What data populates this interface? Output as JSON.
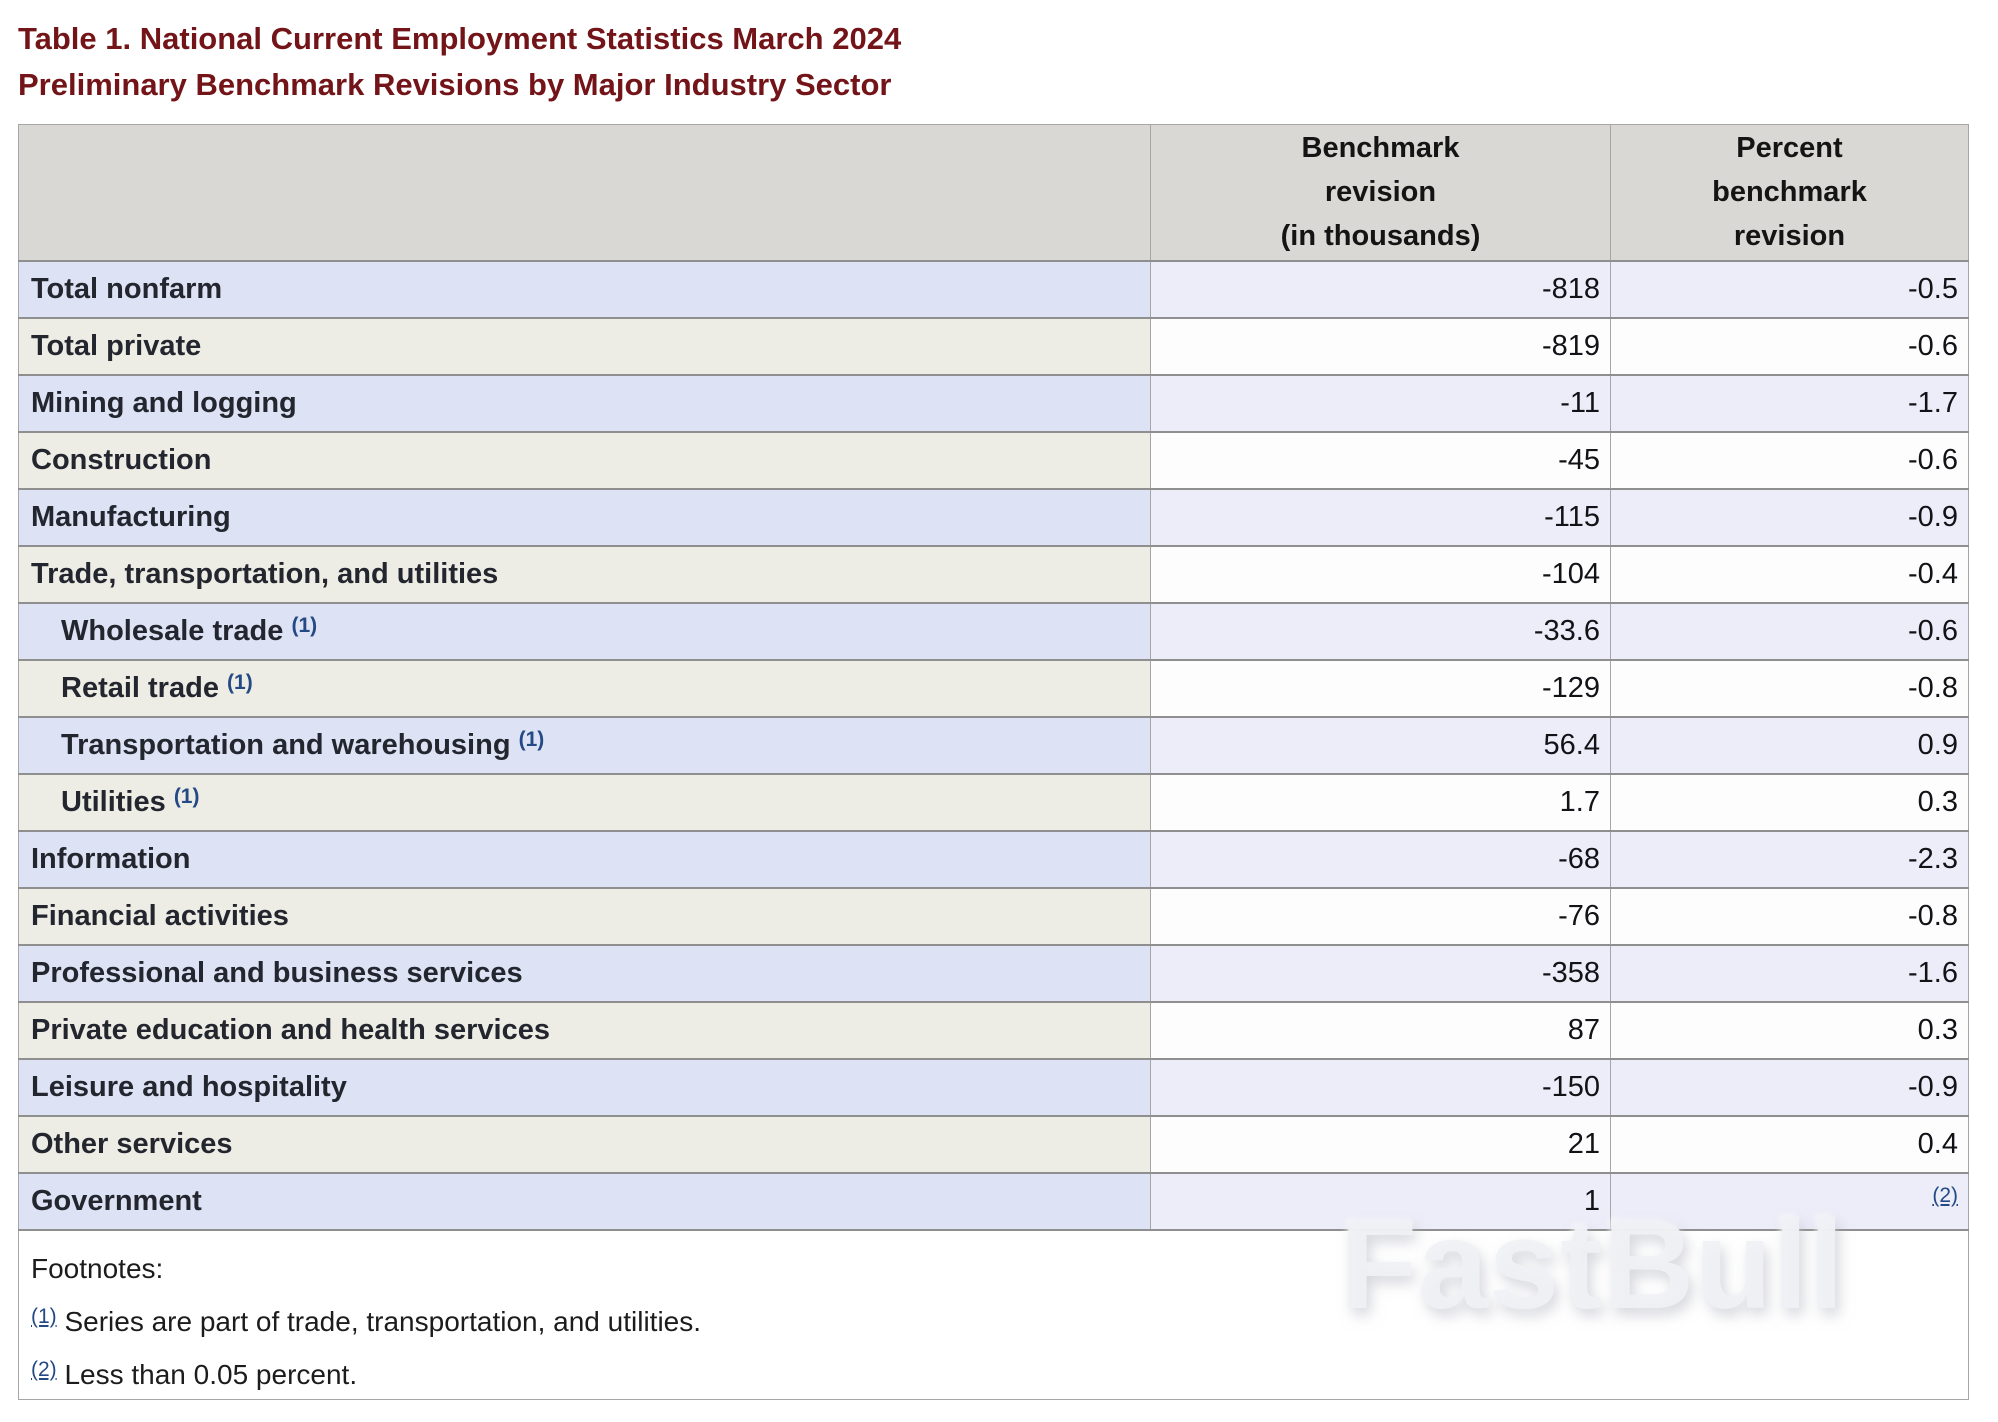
{
  "title": {
    "line1": "Table 1. National Current Employment Statistics March 2024",
    "line2": "Preliminary Benchmark Revisions by Major Industry Sector"
  },
  "table": {
    "header": {
      "industry_col": "",
      "benchmark_col": [
        "Benchmark",
        "revision",
        "(in thousands)"
      ],
      "percent_col": [
        "Percent",
        "benchmark",
        "revision"
      ]
    },
    "rows": [
      {
        "label": "Total nonfarm",
        "benchmark": "-818",
        "percent": "-0.5"
      },
      {
        "label": "Total private",
        "benchmark": "-819",
        "percent": "-0.6"
      },
      {
        "label": "Mining and logging",
        "benchmark": "-11",
        "percent": "-1.7"
      },
      {
        "label": "Construction",
        "benchmark": "-45",
        "percent": "-0.6"
      },
      {
        "label": "Manufacturing",
        "benchmark": "-115",
        "percent": "-0.9"
      },
      {
        "label": "Trade, transportation, and utilities",
        "benchmark": "-104",
        "percent": "-0.4"
      },
      {
        "label": "Wholesale trade",
        "footnote": "(1)",
        "indent": true,
        "benchmark": "-33.6",
        "percent": "-0.6"
      },
      {
        "label": "Retail trade",
        "footnote": "(1)",
        "indent": true,
        "benchmark": "-129",
        "percent": "-0.8"
      },
      {
        "label": "Transportation and warehousing",
        "footnote": "(1)",
        "indent": true,
        "benchmark": "56.4",
        "percent": "0.9"
      },
      {
        "label": "Utilities",
        "footnote": "(1)",
        "indent": true,
        "benchmark": "1.7",
        "percent": "0.3"
      },
      {
        "label": "Information",
        "benchmark": "-68",
        "percent": "-2.3"
      },
      {
        "label": "Financial activities",
        "benchmark": "-76",
        "percent": "-0.8"
      },
      {
        "label": "Professional and business services",
        "benchmark": "-358",
        "percent": "-1.6"
      },
      {
        "label": "Private education and health services",
        "benchmark": "87",
        "percent": "0.3"
      },
      {
        "label": "Leisure and hospitality",
        "benchmark": "-150",
        "percent": "-0.9"
      },
      {
        "label": "Other services",
        "benchmark": "21",
        "percent": "0.4"
      },
      {
        "label": "Government",
        "benchmark": "1",
        "percent": "(2)",
        "percent_is_link": true
      }
    ],
    "footnotes": {
      "heading": "Footnotes:",
      "items": [
        {
          "ref": "(1)",
          "text": "Series are part of trade, transportation, and utilities."
        },
        {
          "ref": "(2)",
          "text": "Less than 0.05 percent."
        }
      ]
    }
  },
  "watermark": "FastBull",
  "colors": {
    "title_maroon": "#731418",
    "link_blue": "#234a85",
    "row_odd_label": "#dde3f5",
    "row_odd_data": "#ecedf8",
    "row_even_label": "#eeede5",
    "row_even_data": "#fdfdfd",
    "header_gray": "#d9d8d4",
    "grid_line": "#8f8f8f"
  }
}
